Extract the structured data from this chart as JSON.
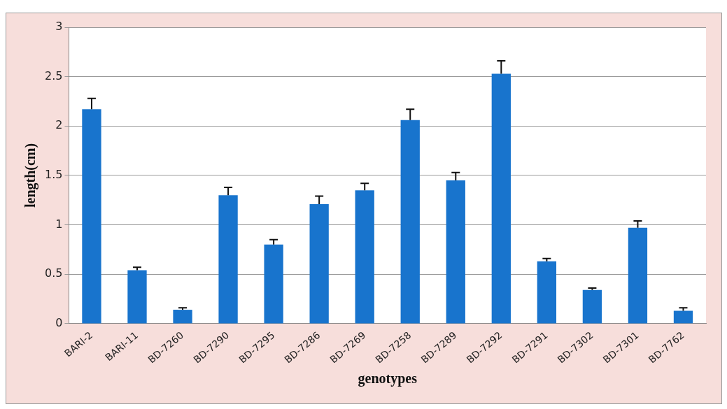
{
  "chart_data": {
    "type": "bar",
    "xlabel": "genotypes",
    "ylabel": "length(cm)",
    "categories": [
      "BARI-2",
      "BARI-11",
      "BD-7260",
      "BD-7290",
      "BD-7295",
      "BD-7286",
      "BD-7269",
      "BD-7258",
      "BD-7289",
      "BD-7292",
      "BD-7291",
      "BD-7302",
      "BD-7301",
      "BD-7762"
    ],
    "values": [
      2.17,
      0.54,
      0.14,
      1.3,
      0.8,
      1.21,
      1.35,
      2.06,
      1.45,
      2.53,
      0.63,
      0.34,
      0.97,
      0.13
    ],
    "errors": [
      [
        2.17,
        2.28
      ],
      [
        0.54,
        0.57
      ],
      [
        0.14,
        0.16
      ],
      [
        1.3,
        1.38
      ],
      [
        0.8,
        0.85
      ],
      [
        1.21,
        1.29
      ],
      [
        1.35,
        1.42
      ],
      [
        2.06,
        2.17
      ],
      [
        1.45,
        1.53
      ],
      [
        2.53,
        2.66
      ],
      [
        0.63,
        0.66
      ],
      [
        0.34,
        0.36
      ],
      [
        0.97,
        1.04
      ],
      [
        0.13,
        0.16
      ]
    ],
    "color": "#1874cd",
    "ylim": [
      0,
      3
    ],
    "yticks": [
      0,
      0.5,
      1,
      1.5,
      2,
      2.5,
      3
    ],
    "grid": "y",
    "legend": false
  }
}
